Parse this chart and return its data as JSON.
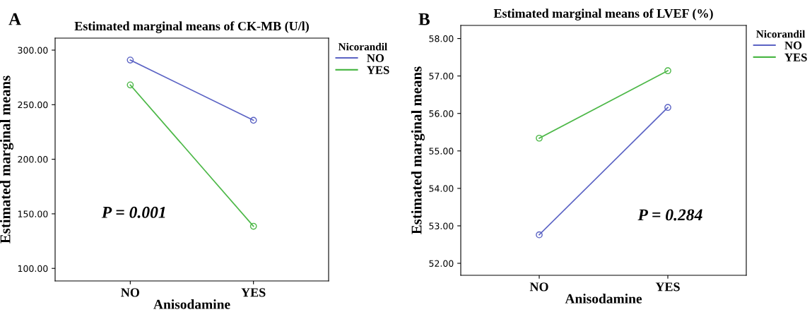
{
  "chart_data": [
    {
      "type": "line",
      "title": "Estimated marginal means of CK-MB (U/l)",
      "xlabel": "Anisodamine",
      "ylabel": "Estimated marginal means",
      "legend_title": "Nicorandil",
      "categories": [
        "NO",
        "YES"
      ],
      "series": [
        {
          "name": "NO",
          "color": "#5b63c4",
          "values": [
            290.9,
            235.7
          ]
        },
        {
          "name": "YES",
          "color": "#4db848",
          "values": [
            268.1,
            138.6
          ]
        }
      ],
      "ylim": [
        88.5,
        311
      ],
      "yticks": [
        {
          "value": 100,
          "label": "100.00"
        },
        {
          "value": 150,
          "label": "150.00"
        },
        {
          "value": 200,
          "label": "200.00"
        },
        {
          "value": 250,
          "label": "250.00"
        },
        {
          "value": 300,
          "label": "300.00"
        }
      ],
      "annotations": [
        "A",
        "P = 0.001"
      ],
      "marker": "circle",
      "legend": "right",
      "grid": false
    },
    {
      "type": "line",
      "title": "Estimated marginal means of LVEF (%)",
      "xlabel": "Anisodamine",
      "ylabel": "Estimated marginal means",
      "legend_title": "Nicorandil",
      "categories": [
        "NO",
        "YES"
      ],
      "series": [
        {
          "name": "NO",
          "color": "#5b63c4",
          "values": [
            52.76,
            56.16
          ]
        },
        {
          "name": "YES",
          "color": "#4db848",
          "values": [
            55.34,
            57.14
          ]
        }
      ],
      "ylim": [
        51.68,
        58.35
      ],
      "yticks": [
        {
          "value": 52,
          "label": "52.00"
        },
        {
          "value": 53,
          "label": "53.00"
        },
        {
          "value": 54,
          "label": "54.00"
        },
        {
          "value": 55,
          "label": "55.00"
        },
        {
          "value": 56,
          "label": "56.00"
        },
        {
          "value": 57,
          "label": "57.00"
        },
        {
          "value": 58,
          "label": "58.00"
        }
      ],
      "annotations": [
        "B",
        "P = 0.284"
      ],
      "marker": "circle",
      "legend": "right",
      "grid": false
    }
  ]
}
